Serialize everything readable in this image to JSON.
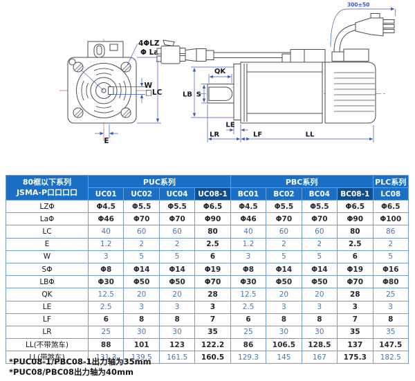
{
  "drawing": {
    "front_labels": {
      "holes": "4ΦLZ",
      "pcd": "Φ La",
      "w": "W",
      "lc": "□LC",
      "e": "E"
    },
    "side_labels": {
      "qk": "QK",
      "s": "S",
      "lb": "LB",
      "le": "LE",
      "lr": "LR",
      "lf": "LF",
      "ll": "LL",
      "cable": "300±50"
    }
  },
  "table": {
    "corner_header": {
      "line1": "80框以下系列",
      "line2": "JSMA-P口口口口"
    },
    "groups": [
      {
        "label": "PUC系列",
        "span": 4
      },
      {
        "label": "PBC系列",
        "span": 4
      },
      {
        "label": "PLC系列",
        "span": 1
      }
    ],
    "columns": [
      {
        "label": "UC01",
        "highlight": false
      },
      {
        "label": "UC02",
        "highlight": false
      },
      {
        "label": "UC04",
        "highlight": false
      },
      {
        "label": "UC08-1",
        "highlight": true
      },
      {
        "label": "BC01",
        "highlight": false
      },
      {
        "label": "BC02",
        "highlight": false
      },
      {
        "label": "BC04",
        "highlight": false
      },
      {
        "label": "BC08-1",
        "highlight": true
      },
      {
        "label": "LC08",
        "highlight": false
      }
    ],
    "rows": [
      {
        "label": "LZΦ",
        "tone": "dark",
        "values": [
          "Φ4.5",
          "Φ5.5",
          "Φ5.5",
          "Φ6.5",
          "Φ4.5",
          "Φ5.5",
          "Φ5.5",
          "Φ6.5",
          "Φ6.5"
        ]
      },
      {
        "label": "LaΦ",
        "tone": "dark",
        "values": [
          "Φ46",
          "Φ70",
          "Φ70",
          "Φ90",
          "Φ46",
          "Φ70",
          "Φ70",
          "Φ90",
          "Φ100"
        ]
      },
      {
        "label": "LC",
        "tone": "blue",
        "values": [
          "40",
          "60",
          "60",
          "80",
          "40",
          "60",
          "60",
          "80",
          "86"
        ]
      },
      {
        "label": "E",
        "tone": "blue",
        "values": [
          "1.2",
          "2",
          "2",
          "2.5",
          "1.2",
          "2",
          "2",
          "2.5",
          "2"
        ]
      },
      {
        "label": "W",
        "tone": "blue",
        "values": [
          "3",
          "5",
          "5",
          "6",
          "3",
          "5",
          "5",
          "6",
          "5"
        ]
      },
      {
        "label": "SΦ",
        "tone": "dark",
        "values": [
          "Φ8",
          "Φ14",
          "Φ14",
          "Φ19",
          "Φ8",
          "Φ14",
          "Φ14",
          "Φ19",
          "Φ16"
        ]
      },
      {
        "label": "LBΦ",
        "tone": "dark",
        "values": [
          "Φ30",
          "Φ50",
          "Φ50",
          "Φ70",
          "Φ30",
          "Φ50",
          "Φ50",
          "Φ70",
          "Φ80"
        ]
      },
      {
        "label": "QK",
        "tone": "blue",
        "values": [
          "12.5",
          "20",
          "20",
          "28",
          "12.5",
          "20",
          "20",
          "28",
          "25"
        ]
      },
      {
        "label": "LE",
        "tone": "blue",
        "values": [
          "2.5",
          "3",
          "3",
          "3",
          "2.5",
          "3",
          "3",
          "3",
          "3"
        ]
      },
      {
        "label": "LF",
        "tone": "dark",
        "values": [
          "6",
          "8",
          "8",
          "7",
          "6",
          "8",
          "8",
          "7",
          "8"
        ]
      },
      {
        "label": "LR",
        "tone": "blue",
        "values": [
          "25",
          "30",
          "30",
          "35",
          "25",
          "30",
          "30",
          "35",
          "35"
        ]
      },
      {
        "label": "LL(不带煞车)",
        "tone": "dark",
        "values": [
          "88",
          "101",
          "123",
          "122.2",
          "86",
          "106.5",
          "128.5",
          "137",
          "147.5"
        ]
      },
      {
        "label": "LL(带煞车)",
        "tone": "blue",
        "values": [
          "131.3",
          "139.5",
          "161.5",
          "160.5",
          "129.3",
          "145",
          "167",
          "175.3",
          "182.5"
        ]
      }
    ]
  },
  "footnotes": [
    "*PUC08-1/PBC08-1出力轴为35mm",
    "*PUC08/PBC08出力轴为40mm"
  ],
  "colors": {
    "header_blue": "#1a70c7",
    "header_dark_blue": "#114e90",
    "table_border": "#6f9cd2",
    "value_blue": "#4a76b4",
    "value_dark": "#2b2b33",
    "dimension_blue": "#3b55c2",
    "centerline_red": "#c46a6a"
  }
}
